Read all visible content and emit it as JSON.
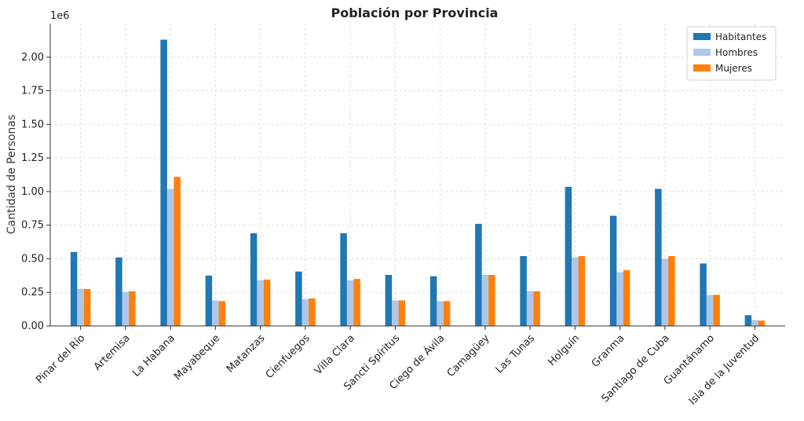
{
  "chart_data": {
    "type": "bar",
    "title": "Población por Provincia",
    "xlabel": "",
    "ylabel": "Cantidad de Personas",
    "y_offset_text": "1e6",
    "ylim": [
      0,
      2.25
    ],
    "y_ticks": [
      "0.00",
      "0.25",
      "0.50",
      "0.75",
      "1.00",
      "1.25",
      "1.50",
      "1.75",
      "2.00"
    ],
    "grid": true,
    "legend_position": "top-right",
    "categories": [
      "Pinar del Río",
      "Artemisa",
      "La Habana",
      "Mayabeque",
      "Matanzas",
      "Cienfuegos",
      "Villa Clara",
      "Sancti Spíritus",
      "Ciego de Ávila",
      "Camagüey",
      "Las Tunas",
      "Holguín",
      "Granma",
      "Santiago de Cuba",
      "Guantánamo",
      "Isla de la Juventud"
    ],
    "series": [
      {
        "name": "Habitantes",
        "color": "#1f77b4",
        "values": [
          0.55,
          0.51,
          2.13,
          0.375,
          0.69,
          0.405,
          0.69,
          0.38,
          0.37,
          0.76,
          0.52,
          1.035,
          0.82,
          1.02,
          0.465,
          0.08
        ]
      },
      {
        "name": "Hombres",
        "color": "#aec7e8",
        "values": [
          0.275,
          0.255,
          1.02,
          0.19,
          0.34,
          0.2,
          0.34,
          0.19,
          0.185,
          0.38,
          0.26,
          0.51,
          0.4,
          0.5,
          0.23,
          0.045
        ]
      },
      {
        "name": "Mujeres",
        "color": "#ff7f0e",
        "values": [
          0.275,
          0.258,
          1.11,
          0.185,
          0.345,
          0.205,
          0.35,
          0.19,
          0.185,
          0.38,
          0.258,
          0.52,
          0.415,
          0.52,
          0.232,
          0.04
        ]
      }
    ]
  }
}
